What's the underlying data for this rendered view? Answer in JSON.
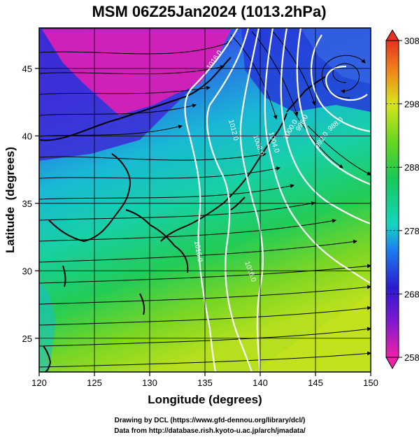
{
  "title": "MSM 06Z25Jan2024 (1013.2hPa)",
  "chart_data": {
    "type": "heatmap",
    "title": "MSM 06Z25Jan2024 (1013.2hPa)",
    "xlabel": "Longitude (degrees)",
    "ylabel": "Latitude  (degrees)",
    "xlim": [
      120,
      150
    ],
    "ylim": [
      22.5,
      48
    ],
    "x_ticks": [
      "120",
      "125",
      "130",
      "135",
      "140",
      "145",
      "150"
    ],
    "y_ticks": [
      "25",
      "30",
      "35",
      "40",
      "45"
    ],
    "colorbar": {
      "range": [
        258,
        308
      ],
      "ticks": [
        "308",
        "298",
        "288",
        "278",
        "268",
        "258"
      ],
      "extend": "both",
      "colors": [
        "#ee22aa",
        "#2a1acc",
        "#1d7ff0",
        "#14d6c0",
        "#17c85a",
        "#66d520",
        "#d8e51c",
        "#ef8a1a",
        "#e63222"
      ]
    },
    "grid": true,
    "overlay": "wind streamlines",
    "contour_labels": [
      {
        "text": "1012.0",
        "lon": 137.6,
        "lat": 39.9
      },
      {
        "text": "1008.0",
        "lon": 140.8,
        "lat": 39.3
      },
      {
        "text": "1004.0",
        "lon": 142.5,
        "lat": 39.4
      },
      {
        "text": "1000.0",
        "lon": 144.0,
        "lat": 40.4
      },
      {
        "text": "996.0",
        "lon": 143.3,
        "lat": 41.4
      },
      {
        "text": "992.0",
        "lon": 146.6,
        "lat": 40.7
      },
      {
        "text": "988.0",
        "lon": 148.7,
        "lat": 41.6
      },
      {
        "text": "1016.0",
        "lon": 138.1,
        "lat": 45.0
      },
      {
        "text": "1016.0",
        "lon": 139.6,
        "lat": 30.5
      },
      {
        "text": "1016.0",
        "lon": 134.7,
        "lat": 31.9
      }
    ]
  },
  "credits": {
    "line1": "Drawing by DCL (https://www.gfd-dennou.org/library/dcl/)",
    "line2": "Data from http://database.rish.kyoto-u.ac.jp/arch/jmadata/"
  }
}
